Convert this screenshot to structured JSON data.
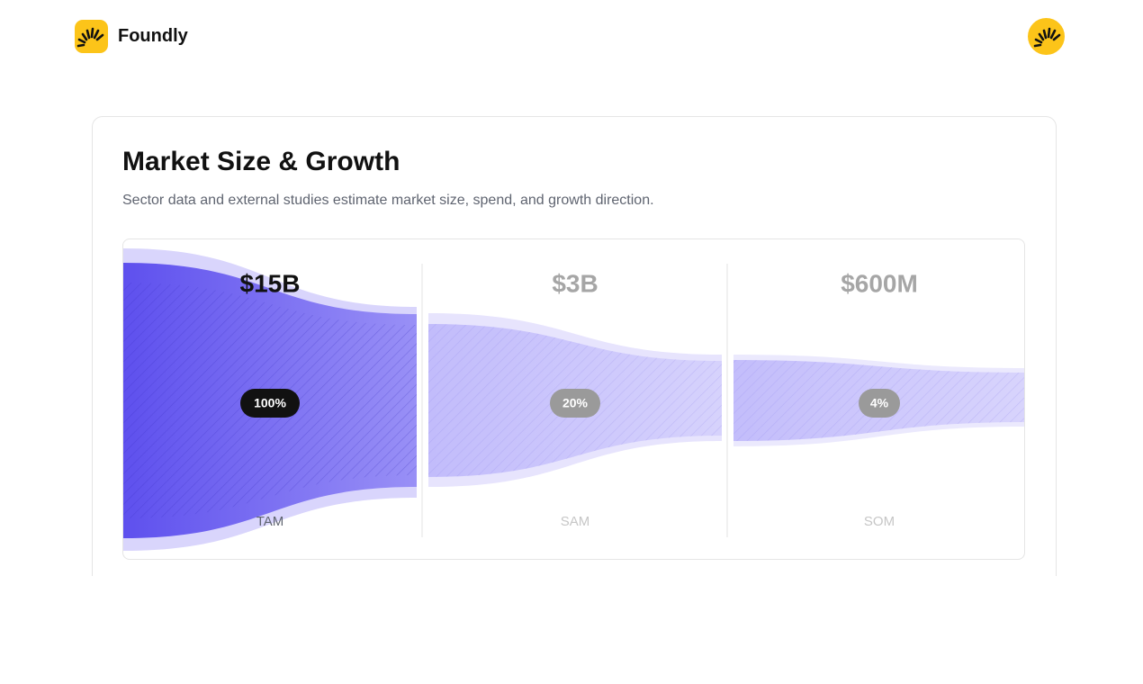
{
  "header": {
    "brand": "Foundly"
  },
  "card": {
    "title": "Market Size & Growth",
    "subtitle": "Sector data and external studies estimate market size, spend, and growth direction."
  },
  "funnel": {
    "stages": [
      {
        "value": "$15B",
        "share": "100%",
        "label": "TAM"
      },
      {
        "value": "$3B",
        "share": "20%",
        "label": "SAM"
      },
      {
        "value": "$600M",
        "share": "4%",
        "label": "SOM"
      }
    ]
  }
}
